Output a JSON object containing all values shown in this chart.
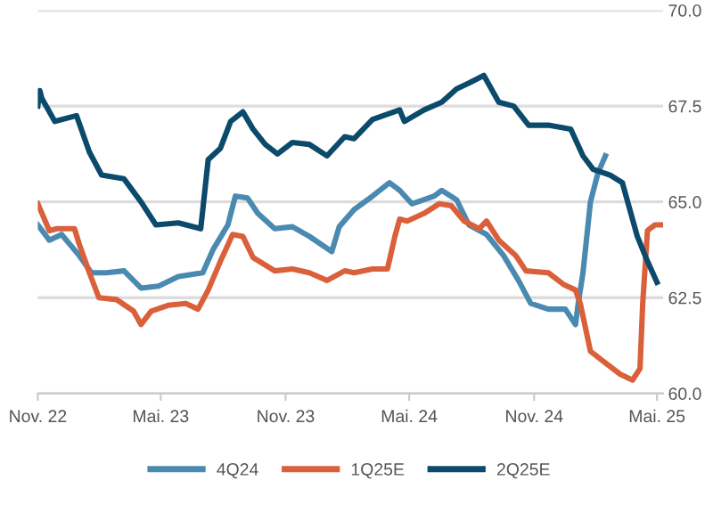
{
  "chart_data": {
    "type": "line",
    "xlim": [
      "2022-11-01",
      "2025-05-10"
    ],
    "xticks": [
      {
        "value": "2022-11",
        "label": "Nov. 22"
      },
      {
        "value": "2023-05",
        "label": "Mai. 23"
      },
      {
        "value": "2023-11",
        "label": "Nov. 23"
      },
      {
        "value": "2024-05",
        "label": "Mai. 24"
      },
      {
        "value": "2024-11",
        "label": "Nov. 24"
      },
      {
        "value": "2025-05",
        "label": "Mai. 25"
      }
    ],
    "ylim": [
      60,
      70
    ],
    "yticks": [
      {
        "value": 60,
        "label": "60.0"
      },
      {
        "value": 62.5,
        "label": "62.5"
      },
      {
        "value": 65,
        "label": "65.0"
      },
      {
        "value": 67.5,
        "label": "67.5"
      },
      {
        "value": 70,
        "label": "70.0"
      }
    ],
    "grid": "y",
    "legend": "bottom",
    "marker": "none",
    "line_style": "solid",
    "series": [
      {
        "name": "4Q24",
        "color": "#4a8ab0",
        "x": [
          "2022-11-01",
          "2022-11-18",
          "2022-12-06",
          "2023-01-01",
          "2023-01-19",
          "2023-02-10",
          "2023-03-08",
          "2023-04-02",
          "2023-04-28",
          "2023-05-27",
          "2023-07-02",
          "2023-07-17",
          "2023-08-08",
          "2023-08-19",
          "2023-09-06",
          "2023-09-21",
          "2023-10-16",
          "2023-11-11",
          "2023-12-06",
          "2024-01-08",
          "2024-01-19",
          "2024-02-10",
          "2024-03-08",
          "2024-04-02",
          "2024-04-17",
          "2024-05-05",
          "2024-06-07",
          "2024-06-18",
          "2024-07-10",
          "2024-07-28",
          "2024-08-23",
          "2024-09-17",
          "2024-10-09",
          "2024-10-27",
          "2024-11-22",
          "2024-12-17",
          "2025-01-01",
          "2025-01-05",
          "2025-01-12",
          "2025-01-23",
          "2025-02-03",
          "2025-02-14"
        ],
        "values": [
          64.4,
          64.0,
          64.15,
          63.6,
          63.15,
          63.15,
          63.2,
          62.75,
          62.8,
          63.05,
          63.15,
          63.75,
          64.4,
          65.15,
          65.1,
          64.7,
          64.3,
          64.35,
          64.1,
          63.7,
          64.35,
          64.8,
          65.15,
          65.5,
          65.3,
          64.95,
          65.15,
          65.3,
          65.05,
          64.4,
          64.15,
          63.6,
          62.95,
          62.35,
          62.2,
          62.2,
          61.8,
          62.35,
          63.15,
          65.0,
          65.75,
          66.2
        ]
      },
      {
        "name": "1Q25E",
        "color": "#d9603b",
        "x": [
          "2022-11-01",
          "2022-11-18",
          "2022-11-29",
          "2022-12-25",
          "2023-01-01",
          "2023-01-16",
          "2023-01-30",
          "2023-02-25",
          "2023-03-22",
          "2023-04-02",
          "2023-04-17",
          "2023-05-12",
          "2023-06-07",
          "2023-06-25",
          "2023-07-10",
          "2023-07-28",
          "2023-08-15",
          "2023-08-30",
          "2023-09-14",
          "2023-10-16",
          "2023-11-11",
          "2023-12-06",
          "2024-01-01",
          "2024-01-27",
          "2024-02-10",
          "2024-03-08",
          "2024-03-30",
          "2024-04-10",
          "2024-04-17",
          "2024-04-28",
          "2024-05-23",
          "2024-06-14",
          "2024-07-02",
          "2024-07-21",
          "2024-08-12",
          "2024-08-23",
          "2024-09-10",
          "2024-10-05",
          "2024-10-20",
          "2024-11-22",
          "2024-12-14",
          "2025-01-01",
          "2025-01-08",
          "2025-01-23",
          "2025-02-10",
          "2025-03-08",
          "2025-03-26",
          "2025-04-06",
          "2025-04-10",
          "2025-04-17",
          "2025-04-28",
          "2025-05-08"
        ],
        "values": [
          64.95,
          64.25,
          64.3,
          64.3,
          63.9,
          63.15,
          62.5,
          62.45,
          62.15,
          61.8,
          62.15,
          62.3,
          62.35,
          62.2,
          62.7,
          63.45,
          64.15,
          64.1,
          63.55,
          63.2,
          63.25,
          63.15,
          62.95,
          63.2,
          63.15,
          63.25,
          63.25,
          64.1,
          64.55,
          64.5,
          64.7,
          64.95,
          64.9,
          64.5,
          64.3,
          64.5,
          64.0,
          63.6,
          63.2,
          63.15,
          62.85,
          62.7,
          62.35,
          61.1,
          60.85,
          60.5,
          60.35,
          60.65,
          62.35,
          64.25,
          64.4,
          64.4
        ]
      },
      {
        "name": "2Q25E",
        "color": "#0b4a6b",
        "x": [
          "2022-11-01",
          "2022-11-04",
          "2022-11-07",
          "2022-11-26",
          "2022-12-28",
          "2023-01-16",
          "2023-02-03",
          "2023-03-08",
          "2023-04-02",
          "2023-04-24",
          "2023-05-27",
          "2023-06-29",
          "2023-07-10",
          "2023-07-28",
          "2023-08-12",
          "2023-08-30",
          "2023-09-14",
          "2023-10-02",
          "2023-10-20",
          "2023-11-11",
          "2023-12-06",
          "2024-01-01",
          "2024-01-27",
          "2024-02-10",
          "2024-03-08",
          "2024-04-17",
          "2024-04-24",
          "2024-05-23",
          "2024-06-18",
          "2024-07-10",
          "2024-07-28",
          "2024-08-19",
          "2024-09-10",
          "2024-10-02",
          "2024-10-24",
          "2024-11-22",
          "2024-12-25",
          "2025-01-12",
          "2025-01-27",
          "2025-02-21",
          "2025-03-11",
          "2025-04-02",
          "2025-04-17",
          "2025-05-01"
        ],
        "values": [
          67.5,
          67.9,
          67.7,
          67.1,
          67.25,
          66.3,
          65.7,
          65.6,
          65.0,
          64.4,
          64.45,
          64.3,
          66.1,
          66.4,
          67.1,
          67.35,
          66.9,
          66.5,
          66.25,
          66.55,
          66.5,
          66.2,
          66.7,
          66.65,
          67.15,
          67.4,
          67.1,
          67.4,
          67.6,
          67.95,
          68.1,
          68.3,
          67.6,
          67.5,
          67.0,
          67.0,
          66.9,
          66.2,
          65.85,
          65.7,
          65.5,
          64.1,
          63.45,
          62.9
        ]
      }
    ]
  }
}
